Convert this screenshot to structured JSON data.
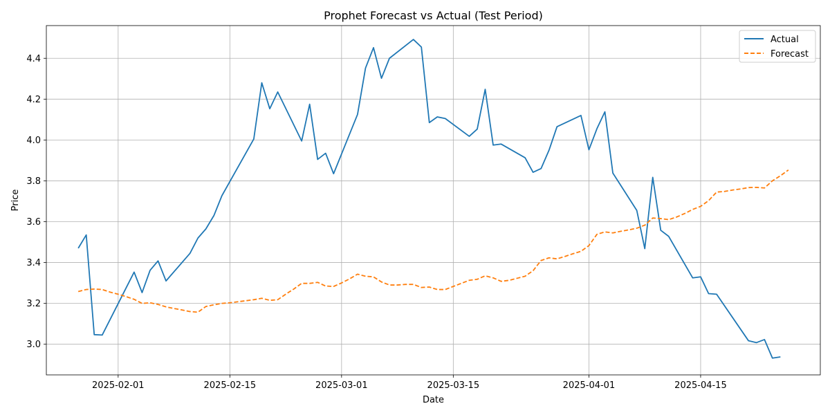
{
  "chart_data": {
    "type": "line",
    "title": "Prophet Forecast vs Actual (Test Period)",
    "xlabel": "Date",
    "ylabel": "Price",
    "xlim": [
      "2025-01-23",
      "2025-04-30"
    ],
    "ylim": [
      2.85,
      4.56
    ],
    "x_ticks": [
      "2025-02-01",
      "2025-02-15",
      "2025-03-01",
      "2025-03-15",
      "2025-04-01",
      "2025-04-15"
    ],
    "y_ticks": [
      3.0,
      3.2,
      3.4,
      3.6,
      3.8,
      4.0,
      4.2,
      4.4
    ],
    "y_tick_labels": [
      "3.0",
      "3.2",
      "3.4",
      "3.6",
      "3.8",
      "4.0",
      "4.2",
      "4.4"
    ],
    "grid": true,
    "legend_position": "upper-right",
    "series": [
      {
        "name": "Actual",
        "color": "#1f77b4",
        "style": "solid",
        "points": [
          [
            "2025-01-27",
            3.47
          ],
          [
            "2025-01-28",
            3.535
          ],
          [
            "2025-01-29",
            3.047
          ],
          [
            "2025-01-30",
            3.045
          ],
          [
            "2025-02-03",
            3.353
          ],
          [
            "2025-02-04",
            3.253
          ],
          [
            "2025-02-05",
            3.362
          ],
          [
            "2025-02-06",
            3.408
          ],
          [
            "2025-02-07",
            3.31
          ],
          [
            "2025-02-10",
            3.445
          ],
          [
            "2025-02-11",
            3.52
          ],
          [
            "2025-02-12",
            3.565
          ],
          [
            "2025-02-13",
            3.63
          ],
          [
            "2025-02-14",
            3.727
          ],
          [
            "2025-02-18",
            4.005
          ],
          [
            "2025-02-19",
            4.28
          ],
          [
            "2025-02-20",
            4.153
          ],
          [
            "2025-02-21",
            4.235
          ],
          [
            "2025-02-24",
            3.995
          ],
          [
            "2025-02-25",
            4.175
          ],
          [
            "2025-02-26",
            3.905
          ],
          [
            "2025-02-27",
            3.935
          ],
          [
            "2025-02-28",
            3.835
          ],
          [
            "2025-03-03",
            4.125
          ],
          [
            "2025-03-04",
            4.352
          ],
          [
            "2025-03-05",
            4.452
          ],
          [
            "2025-03-06",
            4.302
          ],
          [
            "2025-03-07",
            4.4
          ],
          [
            "2025-03-10",
            4.492
          ],
          [
            "2025-03-11",
            4.455
          ],
          [
            "2025-03-12",
            4.085
          ],
          [
            "2025-03-13",
            4.113
          ],
          [
            "2025-03-14",
            4.105
          ],
          [
            "2025-03-17",
            4.018
          ],
          [
            "2025-03-18",
            4.053
          ],
          [
            "2025-03-19",
            4.248
          ],
          [
            "2025-03-20",
            3.975
          ],
          [
            "2025-03-21",
            3.98
          ],
          [
            "2025-03-24",
            3.913
          ],
          [
            "2025-03-25",
            3.842
          ],
          [
            "2025-03-26",
            3.86
          ],
          [
            "2025-03-27",
            3.95
          ],
          [
            "2025-03-28",
            4.065
          ],
          [
            "2025-03-31",
            4.12
          ],
          [
            "2025-04-01",
            3.952
          ],
          [
            "2025-04-02",
            4.055
          ],
          [
            "2025-04-03",
            4.138
          ],
          [
            "2025-04-04",
            3.838
          ],
          [
            "2025-04-07",
            3.655
          ],
          [
            "2025-04-08",
            3.468
          ],
          [
            "2025-04-09",
            3.817
          ],
          [
            "2025-04-10",
            3.558
          ],
          [
            "2025-04-11",
            3.528
          ],
          [
            "2025-04-14",
            3.325
          ],
          [
            "2025-04-15",
            3.33
          ],
          [
            "2025-04-16",
            3.248
          ],
          [
            "2025-04-17",
            3.245
          ],
          [
            "2025-04-21",
            3.017
          ],
          [
            "2025-04-22",
            3.008
          ],
          [
            "2025-04-23",
            3.023
          ],
          [
            "2025-04-24",
            2.932
          ],
          [
            "2025-04-25",
            2.938
          ]
        ]
      },
      {
        "name": "Forecast",
        "color": "#ff7f0e",
        "style": "dashed",
        "points": [
          [
            "2025-01-27",
            3.258
          ],
          [
            "2025-01-28",
            3.268
          ],
          [
            "2025-01-29",
            3.27
          ],
          [
            "2025-01-30",
            3.268
          ],
          [
            "2025-01-31",
            3.255
          ],
          [
            "2025-02-01",
            3.245
          ],
          [
            "2025-02-02",
            3.233
          ],
          [
            "2025-02-03",
            3.22
          ],
          [
            "2025-02-04",
            3.2
          ],
          [
            "2025-02-05",
            3.203
          ],
          [
            "2025-02-06",
            3.195
          ],
          [
            "2025-02-07",
            3.183
          ],
          [
            "2025-02-08",
            3.175
          ],
          [
            "2025-02-09",
            3.168
          ],
          [
            "2025-02-10",
            3.16
          ],
          [
            "2025-02-11",
            3.157
          ],
          [
            "2025-02-12",
            3.185
          ],
          [
            "2025-02-13",
            3.193
          ],
          [
            "2025-02-14",
            3.2
          ],
          [
            "2025-02-15",
            3.203
          ],
          [
            "2025-02-16",
            3.208
          ],
          [
            "2025-02-17",
            3.213
          ],
          [
            "2025-02-18",
            3.218
          ],
          [
            "2025-02-19",
            3.225
          ],
          [
            "2025-02-20",
            3.215
          ],
          [
            "2025-02-21",
            3.218
          ],
          [
            "2025-02-22",
            3.245
          ],
          [
            "2025-02-23",
            3.27
          ],
          [
            "2025-02-24",
            3.298
          ],
          [
            "2025-02-25",
            3.298
          ],
          [
            "2025-02-26",
            3.303
          ],
          [
            "2025-02-27",
            3.285
          ],
          [
            "2025-02-28",
            3.283
          ],
          [
            "2025-03-01",
            3.3
          ],
          [
            "2025-03-02",
            3.32
          ],
          [
            "2025-03-03",
            3.343
          ],
          [
            "2025-03-04",
            3.333
          ],
          [
            "2025-03-05",
            3.33
          ],
          [
            "2025-03-06",
            3.305
          ],
          [
            "2025-03-07",
            3.29
          ],
          [
            "2025-03-08",
            3.29
          ],
          [
            "2025-03-09",
            3.293
          ],
          [
            "2025-03-10",
            3.293
          ],
          [
            "2025-03-11",
            3.278
          ],
          [
            "2025-03-12",
            3.28
          ],
          [
            "2025-03-13",
            3.268
          ],
          [
            "2025-03-14",
            3.268
          ],
          [
            "2025-03-15",
            3.283
          ],
          [
            "2025-03-16",
            3.298
          ],
          [
            "2025-03-17",
            3.313
          ],
          [
            "2025-03-18",
            3.318
          ],
          [
            "2025-03-19",
            3.335
          ],
          [
            "2025-03-20",
            3.325
          ],
          [
            "2025-03-21",
            3.308
          ],
          [
            "2025-03-22",
            3.313
          ],
          [
            "2025-03-23",
            3.323
          ],
          [
            "2025-03-24",
            3.333
          ],
          [
            "2025-03-25",
            3.36
          ],
          [
            "2025-03-26",
            3.41
          ],
          [
            "2025-03-27",
            3.423
          ],
          [
            "2025-03-28",
            3.418
          ],
          [
            "2025-03-29",
            3.43
          ],
          [
            "2025-03-30",
            3.443
          ],
          [
            "2025-03-31",
            3.455
          ],
          [
            "2025-04-01",
            3.483
          ],
          [
            "2025-04-02",
            3.538
          ],
          [
            "2025-04-03",
            3.55
          ],
          [
            "2025-04-04",
            3.545
          ],
          [
            "2025-04-05",
            3.553
          ],
          [
            "2025-04-06",
            3.56
          ],
          [
            "2025-04-07",
            3.568
          ],
          [
            "2025-04-08",
            3.583
          ],
          [
            "2025-04-09",
            3.618
          ],
          [
            "2025-04-10",
            3.615
          ],
          [
            "2025-04-11",
            3.61
          ],
          [
            "2025-04-12",
            3.623
          ],
          [
            "2025-04-13",
            3.64
          ],
          [
            "2025-04-14",
            3.66
          ],
          [
            "2025-04-15",
            3.675
          ],
          [
            "2025-04-16",
            3.703
          ],
          [
            "2025-04-17",
            3.745
          ],
          [
            "2025-04-18",
            3.748
          ],
          [
            "2025-04-19",
            3.755
          ],
          [
            "2025-04-20",
            3.76
          ],
          [
            "2025-04-21",
            3.767
          ],
          [
            "2025-04-22",
            3.768
          ],
          [
            "2025-04-23",
            3.765
          ],
          [
            "2025-04-24",
            3.8
          ],
          [
            "2025-04-25",
            3.825
          ],
          [
            "2025-04-26",
            3.853
          ]
        ]
      }
    ]
  }
}
